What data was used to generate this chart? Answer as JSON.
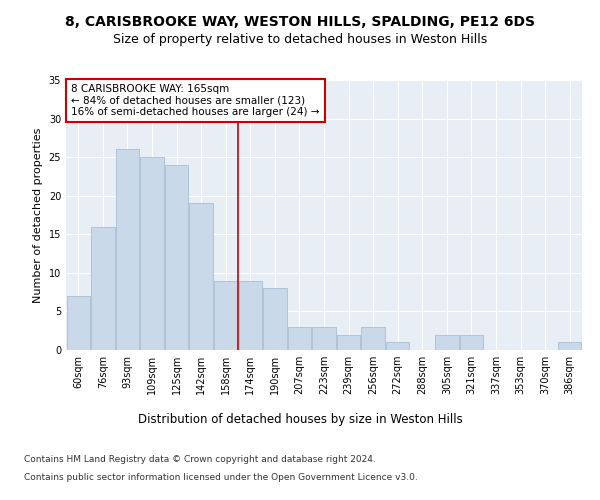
{
  "title1": "8, CARISBROOKE WAY, WESTON HILLS, SPALDING, PE12 6DS",
  "title2": "Size of property relative to detached houses in Weston Hills",
  "xlabel": "Distribution of detached houses by size in Weston Hills",
  "ylabel": "Number of detached properties",
  "categories": [
    "60sqm",
    "76sqm",
    "93sqm",
    "109sqm",
    "125sqm",
    "142sqm",
    "158sqm",
    "174sqm",
    "190sqm",
    "207sqm",
    "223sqm",
    "239sqm",
    "256sqm",
    "272sqm",
    "288sqm",
    "305sqm",
    "321sqm",
    "337sqm",
    "353sqm",
    "370sqm",
    "386sqm"
  ],
  "values": [
    7,
    16,
    26,
    25,
    24,
    19,
    9,
    9,
    8,
    3,
    3,
    2,
    3,
    1,
    0,
    2,
    2,
    0,
    0,
    0,
    1
  ],
  "bar_color": "#c9d9ea",
  "bar_edgecolor": "#a8bfd4",
  "vline_x": 6.5,
  "vline_color": "#cc0000",
  "annotation_text": "8 CARISBROOKE WAY: 165sqm\n← 84% of detached houses are smaller (123)\n16% of semi-detached houses are larger (24) →",
  "annotation_box_edgecolor": "#cc0000",
  "annotation_box_facecolor": "#ffffff",
  "ylim": [
    0,
    35
  ],
  "yticks": [
    0,
    5,
    10,
    15,
    20,
    25,
    30,
    35
  ],
  "footer1": "Contains HM Land Registry data © Crown copyright and database right 2024.",
  "footer2": "Contains public sector information licensed under the Open Government Licence v3.0.",
  "plot_bg_color": "#e8eef5",
  "title1_fontsize": 10,
  "title2_fontsize": 9,
  "xlabel_fontsize": 8.5,
  "ylabel_fontsize": 8,
  "tick_fontsize": 7,
  "annotation_fontsize": 7.5,
  "footer_fontsize": 6.5
}
